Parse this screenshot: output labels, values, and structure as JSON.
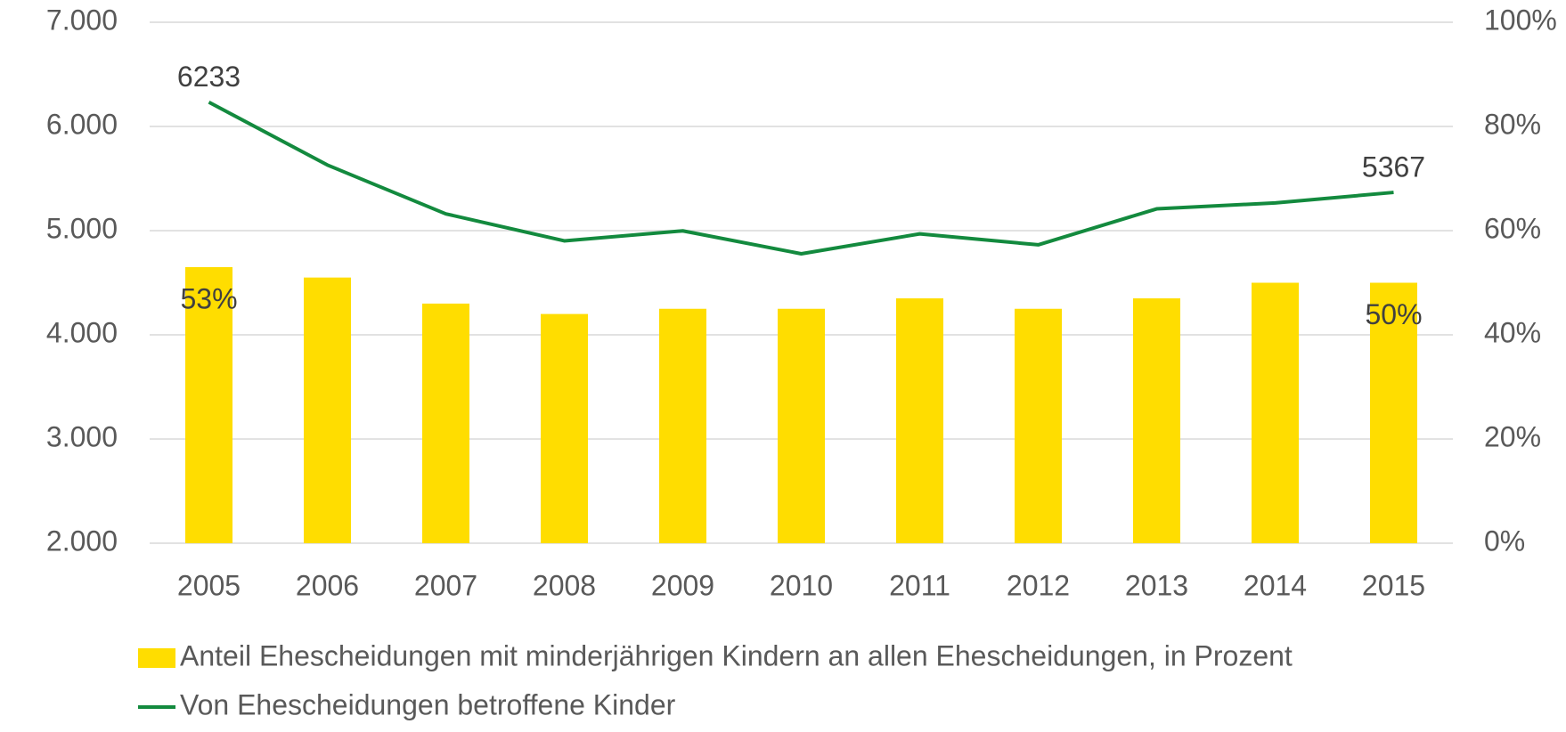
{
  "chart_data": {
    "type": "bar_line",
    "categories": [
      "2005",
      "2006",
      "2007",
      "2008",
      "2009",
      "2010",
      "2011",
      "2012",
      "2013",
      "2014",
      "2015"
    ],
    "series": [
      {
        "name": "Anteil Ehescheidungen mit minderjährigen Kindern an allen Ehescheidungen, in Prozent",
        "type": "bar",
        "axis": "y2",
        "color": "#FFDD00",
        "values": [
          53,
          51,
          46,
          44,
          45,
          45,
          47,
          45,
          47,
          50,
          50
        ],
        "value_labels": [
          "53%",
          null,
          null,
          null,
          null,
          null,
          null,
          null,
          null,
          null,
          "50%"
        ]
      },
      {
        "name": "Von Ehescheidungen betroffene Kinder",
        "type": "line",
        "axis": "y",
        "color": "#138A3E",
        "values": [
          6233,
          5630,
          5161,
          4902,
          4998,
          4778,
          4969,
          4864,
          5209,
          5266,
          5367
        ],
        "value_labels": [
          "6233",
          null,
          null,
          null,
          null,
          null,
          null,
          null,
          null,
          null,
          "5367"
        ]
      }
    ],
    "ylim": [
      2000,
      7000
    ],
    "yticks": [
      {
        "value": 2000,
        "label": "2.000"
      },
      {
        "value": 3000,
        "label": "3.000"
      },
      {
        "value": 4000,
        "label": "4.000"
      },
      {
        "value": 5000,
        "label": "5.000"
      },
      {
        "value": 6000,
        "label": "6.000"
      },
      {
        "value": 7000,
        "label": "7.000"
      }
    ],
    "y2lim": [
      0,
      100
    ],
    "y2ticks": [
      {
        "value": 0,
        "label": "0%"
      },
      {
        "value": 20,
        "label": "20%"
      },
      {
        "value": 40,
        "label": "40%"
      },
      {
        "value": 60,
        "label": "60%"
      },
      {
        "value": 80,
        "label": "80%"
      },
      {
        "value": 100,
        "label": "100%"
      }
    ],
    "grid": true,
    "legend": "bottom"
  }
}
